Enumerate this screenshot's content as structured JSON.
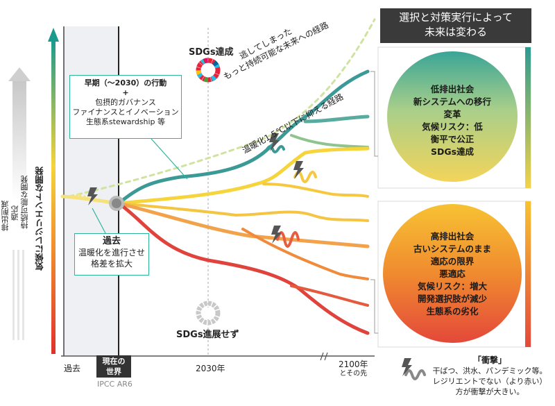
{
  "header": {
    "line1": "選択と対策実行によって",
    "line2": "未来は変わる"
  },
  "left_axis": {
    "main_label": "気候にレジリエントな開発",
    "sub_labels": [
      "排出削減",
      "適応",
      "持続可能な開発"
    ]
  },
  "timeline": {
    "past": "過去",
    "present_line1": "現在の",
    "present_line2": "世界",
    "present_sub": "IPCC AR6",
    "year_2030": "2030年",
    "year_2100_line1": "2100年",
    "year_2100_line2": "とその先"
  },
  "early_action_box": {
    "title": "早期（～2030）の行動",
    "plus": "+",
    "lines": [
      "包摂的ガバナンス",
      "ファイナンスとイノベーション",
      "生態系stewardship 等"
    ]
  },
  "past_box": {
    "title": "過去",
    "lines": [
      "温暖化を進行させ",
      "格差を拡大"
    ]
  },
  "path_labels": {
    "missed": [
      "逃してしまった",
      "もっと持続可能な未来への経路"
    ],
    "limit": "温暖化1.5℃以下に抑える経路"
  },
  "sdg_labels": {
    "achieved": "SDGs達成",
    "not_progressed": "SDGs進展せず"
  },
  "good_outcome": {
    "lines": [
      "低排出社会",
      "新システムへの移行",
      "変革",
      "気候リスク：低",
      "衡平で公正",
      "SDGs達成"
    ]
  },
  "bad_outcome": {
    "lines": [
      "高排出社会",
      "古いシステムのまま",
      "適応の限界",
      "悪適応",
      "気候リスク：増大",
      "開発選択肢が減少",
      "生態系の劣化"
    ]
  },
  "shock_legend": {
    "title": "「衝撃」",
    "lines": [
      "干ばつ、洪水、パンデミック等。",
      "レジリエントでない（より赤い）",
      "方が衝撃が大きい。"
    ]
  },
  "colors": {
    "teal": "#3b9a96",
    "yellow": "#f6d53c",
    "orange": "#f2a24a",
    "red": "#e0433c",
    "box_border": "#2bb59a",
    "header_bg": "#3a3a3a"
  }
}
